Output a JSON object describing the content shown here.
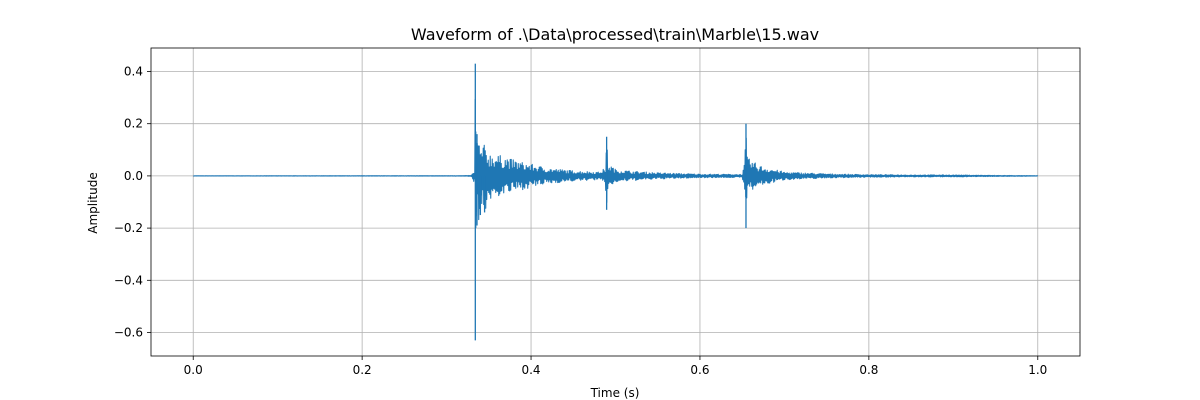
{
  "chart_data": {
    "type": "line",
    "title": "Waveform of .\\Data\\processed\\train\\Marble\\15.wav",
    "xlabel": "Time (s)",
    "ylabel": "Amplitude",
    "xlim": [
      -0.05,
      1.05
    ],
    "ylim": [
      -0.69,
      0.49
    ],
    "xticks": [
      0.0,
      0.2,
      0.4,
      0.6,
      0.8,
      1.0
    ],
    "xtick_labels": [
      "0.0",
      "0.2",
      "0.4",
      "0.6",
      "0.8",
      "1.0"
    ],
    "yticks": [
      -0.6,
      -0.4,
      -0.2,
      0.0,
      0.2,
      0.4
    ],
    "ytick_labels": [
      "−0.6",
      "−0.4",
      "−0.2",
      "0.0",
      "0.2",
      "0.4"
    ],
    "grid": true,
    "legend": "none",
    "series": [
      {
        "color": "#1f77b4",
        "x_range": [
          0.0,
          1.0
        ],
        "envelope": {
          "x": [
            0.0,
            0.32,
            0.329,
            0.3335,
            0.334,
            0.3345,
            0.336,
            0.34,
            0.345,
            0.35,
            0.36,
            0.37,
            0.38,
            0.4,
            0.42,
            0.45,
            0.48,
            0.488,
            0.4895,
            0.491,
            0.5,
            0.52,
            0.55,
            0.6,
            0.65,
            0.653,
            0.6545,
            0.656,
            0.67,
            0.7,
            0.75,
            0.8,
            0.85,
            0.9,
            0.95,
            1.0
          ],
          "upper": [
            0.0005,
            0.001,
            0.002,
            0.02,
            0.43,
            0.17,
            0.16,
            0.11,
            0.12,
            0.09,
            0.08,
            0.075,
            0.06,
            0.045,
            0.03,
            0.02,
            0.015,
            0.03,
            0.15,
            0.05,
            0.025,
            0.018,
            0.012,
            0.007,
            0.006,
            0.05,
            0.2,
            0.07,
            0.04,
            0.015,
            0.008,
            0.005,
            0.004,
            0.004,
            0.002,
            0.001
          ],
          "lower": [
            -0.0005,
            -0.001,
            -0.002,
            -0.03,
            -0.63,
            -0.2,
            -0.19,
            -0.15,
            -0.14,
            -0.1,
            -0.08,
            -0.07,
            -0.06,
            -0.045,
            -0.03,
            -0.02,
            -0.015,
            -0.03,
            -0.13,
            -0.05,
            -0.025,
            -0.018,
            -0.012,
            -0.007,
            -0.006,
            -0.05,
            -0.2,
            -0.07,
            -0.04,
            -0.015,
            -0.008,
            -0.005,
            -0.004,
            -0.004,
            -0.002,
            -0.001
          ]
        }
      }
    ]
  }
}
